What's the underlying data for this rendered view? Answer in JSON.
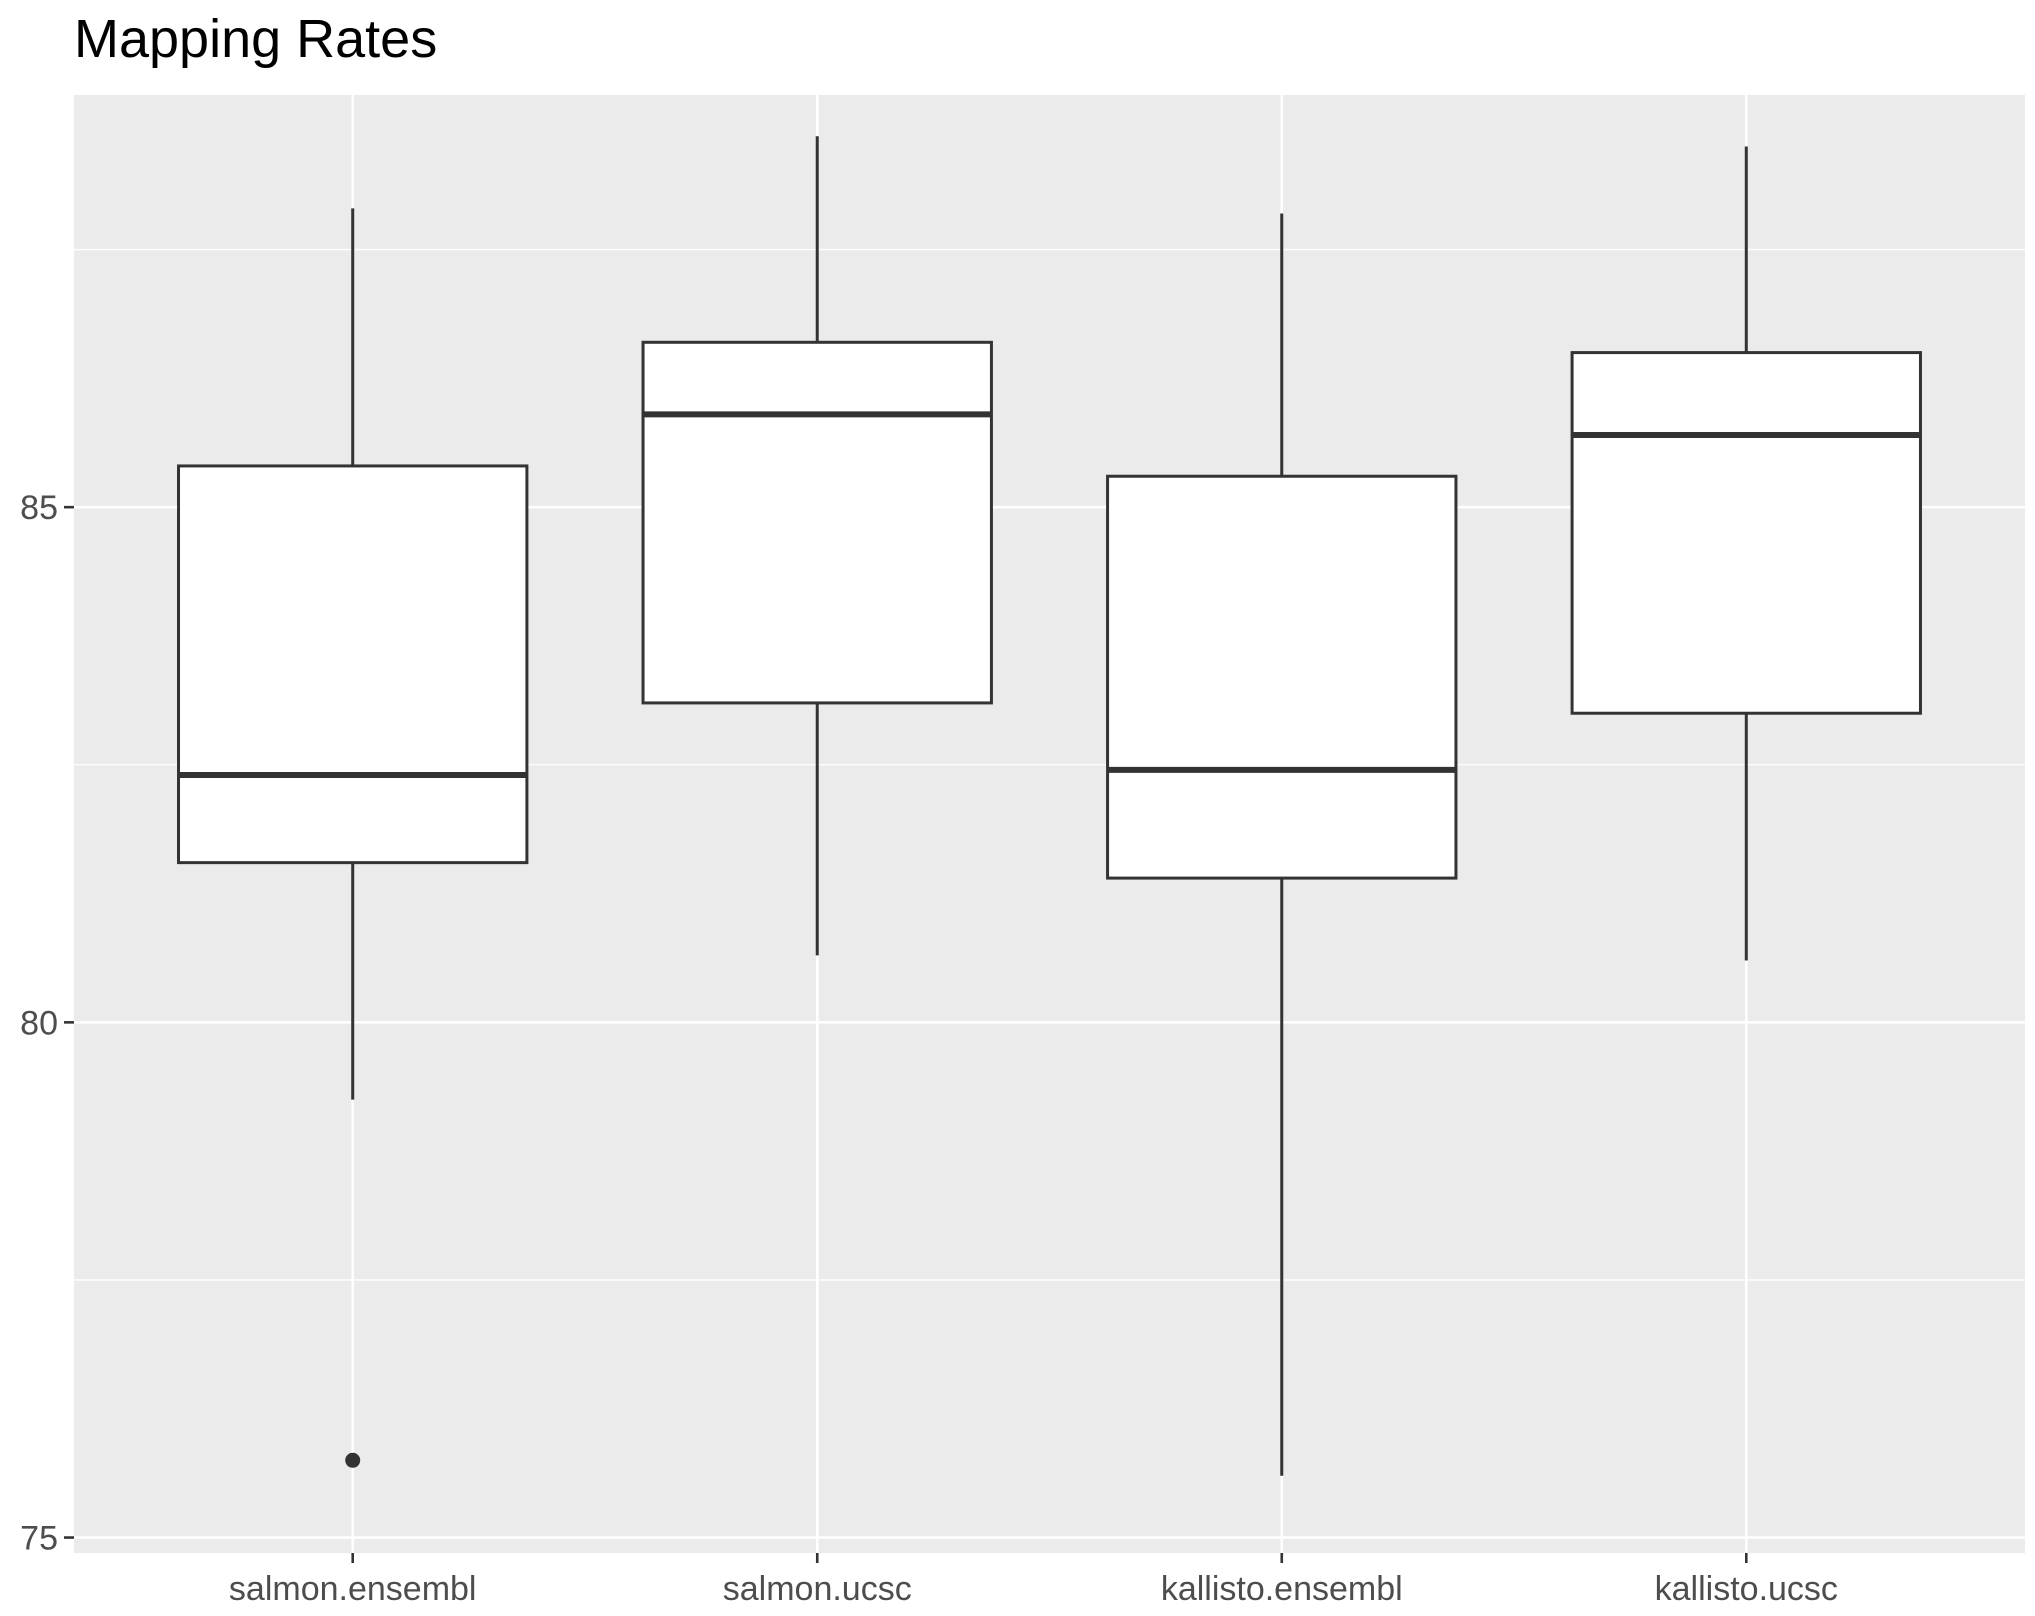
{
  "chart_data": {
    "type": "boxplot",
    "title": "Mapping Rates",
    "xlabel": "",
    "ylabel": "",
    "ylim": [
      74.85,
      89.0
    ],
    "y_ticks": [
      75,
      80,
      85
    ],
    "y_minor_ticks": [
      77.5,
      82.5,
      87.5
    ],
    "grid": true,
    "categories": [
      "salmon.ensembl",
      "salmon.ucsc",
      "kallisto.ensembl",
      "kallisto.ucsc"
    ],
    "boxes": [
      {
        "category": "salmon.ensembl",
        "whisker_low": 79.25,
        "q1": 81.55,
        "median": 82.4,
        "q3": 85.4,
        "whisker_high": 87.9,
        "outliers": [
          75.75
        ]
      },
      {
        "category": "salmon.ucsc",
        "whisker_low": 80.65,
        "q1": 83.1,
        "median": 85.9,
        "q3": 86.6,
        "whisker_high": 88.6,
        "outliers": []
      },
      {
        "category": "kallisto.ensembl",
        "whisker_low": 75.6,
        "q1": 81.4,
        "median": 82.45,
        "q3": 85.3,
        "whisker_high": 87.85,
        "outliers": []
      },
      {
        "category": "kallisto.ucsc",
        "whisker_low": 80.6,
        "q1": 83.0,
        "median": 85.7,
        "q3": 86.5,
        "whisker_high": 88.5,
        "outliers": []
      }
    ],
    "colors": {
      "panel_background": "#ebebeb",
      "grid": "#ffffff",
      "box_fill": "#ffffff",
      "box_stroke": "#333333",
      "tick_text": "#4d4d4d",
      "title_text": "#000000"
    }
  }
}
